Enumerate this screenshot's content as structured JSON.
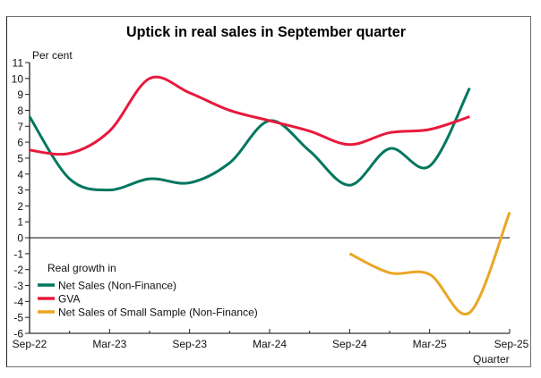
{
  "chart_data": {
    "type": "line",
    "title": "Uptick in real sales in September quarter",
    "ylabel": "Per cent",
    "xlabel": "Quarter",
    "ylim": [
      -6,
      11
    ],
    "yticks": [
      11,
      10,
      9,
      8,
      7,
      6,
      5,
      4,
      3,
      2,
      1,
      0,
      -1,
      -2,
      -3,
      -4,
      -5,
      -6
    ],
    "x": [
      "Sep-22",
      "Dec-22",
      "Mar-23",
      "Jun-23",
      "Sep-23",
      "Dec-23",
      "Mar-24",
      "Jun-24",
      "Sep-24",
      "Dec-24",
      "Mar-25",
      "Jun-25",
      "Sep-25"
    ],
    "xtick_labels": [
      "Sep-22",
      "Mar-23",
      "Sep-23",
      "Mar-24",
      "Sep-24",
      "Mar-25",
      "Sep-25"
    ],
    "grid": false,
    "zero_line": true,
    "legend": {
      "title": "Real growth in",
      "placement": "bottom-left"
    },
    "series": [
      {
        "name": "Net Sales (Non-Finance)",
        "color": "#00775f",
        "values": [
          7.6,
          3.7,
          3.0,
          3.7,
          3.45,
          4.7,
          7.35,
          5.45,
          3.3,
          5.6,
          4.5,
          9.4,
          null
        ]
      },
      {
        "name": "GVA",
        "color": "#e8193c",
        "values": [
          5.5,
          5.3,
          6.7,
          10.0,
          9.1,
          8.0,
          7.35,
          6.7,
          5.85,
          6.6,
          6.8,
          7.6,
          null
        ]
      },
      {
        "name": "Net Sales of Small Sample (Non-Finance)",
        "color": "#eba623",
        "values": [
          null,
          null,
          null,
          null,
          null,
          null,
          null,
          null,
          -1.0,
          -2.2,
          -2.3,
          -4.7,
          1.6
        ]
      }
    ]
  }
}
